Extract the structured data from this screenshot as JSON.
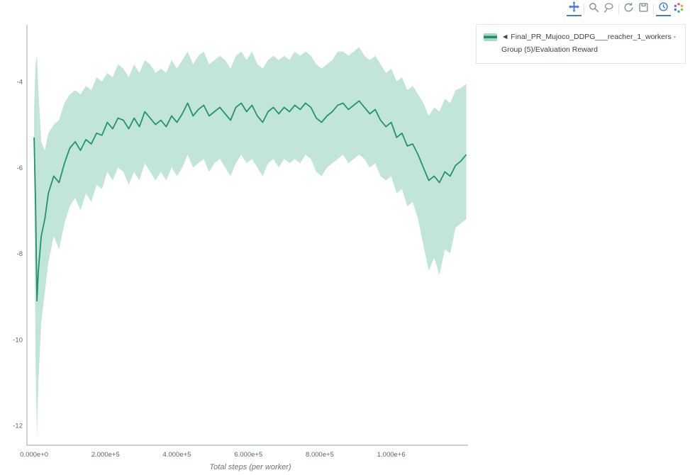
{
  "legend": {
    "label": "◄ Final_PR_Mujoco_DDPG___reacher_1_workers - Group (5)/Evaluation Reward"
  },
  "modebar": {
    "active_color": "#447adb",
    "icon_color": "#85929e",
    "icons": [
      {
        "id": "pan",
        "active": true,
        "group_end": true
      },
      {
        "id": "box-zoom",
        "active": false,
        "group_end": false
      },
      {
        "id": "lasso-select",
        "active": false,
        "group_end": true
      },
      {
        "id": "reset-axes",
        "active": false,
        "group_end": false
      },
      {
        "id": "snapshot",
        "active": false,
        "group_end": true
      },
      {
        "id": "hover-mode",
        "active": true,
        "group_end": false
      },
      {
        "id": "plotly-logo",
        "active": false,
        "group_end": false
      }
    ]
  },
  "chart_data": {
    "type": "line",
    "title": "",
    "xlabel": "Total steps (per worker)",
    "ylabel": "",
    "grid": false,
    "legend_position": "top-right",
    "xlim": [
      -20000,
      1215000
    ],
    "ylim": [
      -12.46,
      -2.68
    ],
    "x_ticks": {
      "values": [
        0,
        200000,
        400000,
        600000,
        800000,
        1000000
      ],
      "labels": [
        "0.000e+0",
        "2.000e+5",
        "4.000e+5",
        "6.000e+5",
        "8.000e+5",
        "1.000e+6"
      ]
    },
    "y_ticks": {
      "values": [
        -4,
        -6,
        -8,
        -10,
        -12
      ],
      "labels": [
        "-4",
        "-6",
        "-8",
        "-10",
        "-12"
      ]
    },
    "series": [
      {
        "name": "Final_PR_Mujoco_DDPG___reacher_1_workers - Group (5)/Evaluation Reward (mean)",
        "color": "#21936f",
        "x": [
          0,
          4000,
          8000,
          12000,
          20000,
          30000,
          40000,
          55000,
          70000,
          85000,
          100000,
          115000,
          130000,
          145000,
          160000,
          175000,
          190000,
          205000,
          220000,
          235000,
          250000,
          265000,
          280000,
          295000,
          310000,
          325000,
          340000,
          355000,
          370000,
          385000,
          400000,
          415000,
          430000,
          445000,
          460000,
          475000,
          490000,
          505000,
          520000,
          535000,
          550000,
          565000,
          580000,
          595000,
          610000,
          625000,
          640000,
          655000,
          670000,
          685000,
          700000,
          715000,
          730000,
          745000,
          760000,
          775000,
          790000,
          805000,
          820000,
          835000,
          850000,
          865000,
          880000,
          895000,
          910000,
          925000,
          940000,
          955000,
          970000,
          985000,
          1000000,
          1015000,
          1030000,
          1045000,
          1060000,
          1075000,
          1090000,
          1105000,
          1120000,
          1135000,
          1150000,
          1165000,
          1180000,
          1195000,
          1210000
        ],
        "values": [
          -5.3,
          -6.8,
          -9.1,
          -8.4,
          -7.6,
          -7.2,
          -6.6,
          -6.2,
          -6.35,
          -5.9,
          -5.55,
          -5.4,
          -5.6,
          -5.35,
          -5.45,
          -5.2,
          -5.25,
          -4.95,
          -5.1,
          -4.85,
          -4.9,
          -5.1,
          -4.85,
          -5.05,
          -4.7,
          -4.85,
          -5.0,
          -4.9,
          -5.05,
          -4.8,
          -4.95,
          -4.75,
          -4.5,
          -4.8,
          -4.65,
          -4.55,
          -4.8,
          -4.7,
          -4.6,
          -4.75,
          -4.9,
          -4.6,
          -4.5,
          -4.7,
          -4.55,
          -4.8,
          -4.95,
          -4.7,
          -4.6,
          -4.75,
          -4.6,
          -4.7,
          -4.55,
          -4.65,
          -4.5,
          -4.6,
          -4.85,
          -4.95,
          -4.8,
          -4.7,
          -4.55,
          -4.5,
          -4.65,
          -4.55,
          -4.45,
          -4.6,
          -4.75,
          -4.65,
          -4.9,
          -5.05,
          -4.95,
          -5.3,
          -5.2,
          -5.5,
          -5.45,
          -5.7,
          -6.0,
          -6.3,
          -6.2,
          -6.35,
          -6.1,
          -6.2,
          -5.95,
          -5.85,
          -5.7
        ]
      }
    ],
    "band": {
      "fill": "#8fd0b9",
      "opacity": 0.55,
      "upper": [
        -4.6,
        -3.6,
        -3.4,
        -4.2,
        -5.4,
        -5.6,
        -5.2,
        -5.0,
        -4.9,
        -4.5,
        -4.3,
        -4.2,
        -4.3,
        -4.1,
        -4.2,
        -3.9,
        -4.0,
        -3.8,
        -3.9,
        -3.6,
        -3.7,
        -3.9,
        -3.6,
        -3.8,
        -3.5,
        -3.6,
        -3.8,
        -3.7,
        -3.8,
        -3.5,
        -3.7,
        -3.5,
        -3.3,
        -3.6,
        -3.4,
        -3.3,
        -3.6,
        -3.5,
        -3.4,
        -3.5,
        -3.7,
        -3.4,
        -3.3,
        -3.5,
        -3.3,
        -3.6,
        -3.7,
        -3.5,
        -3.4,
        -3.5,
        -3.4,
        -3.5,
        -3.3,
        -3.4,
        -3.3,
        -3.4,
        -3.6,
        -3.7,
        -3.6,
        -3.5,
        -3.3,
        -3.3,
        -3.4,
        -3.3,
        -3.2,
        -3.4,
        -3.5,
        -3.4,
        -3.6,
        -3.8,
        -3.7,
        -4.0,
        -3.9,
        -4.2,
        -4.1,
        -4.3,
        -4.5,
        -4.8,
        -4.6,
        -4.7,
        -4.4,
        -4.5,
        -4.2,
        -4.15,
        -4.05
      ],
      "lower": [
        -6.0,
        -10.5,
        -12.3,
        -11.0,
        -9.6,
        -8.9,
        -8.2,
        -7.6,
        -7.9,
        -7.3,
        -6.9,
        -6.7,
        -7.0,
        -6.6,
        -6.8,
        -6.4,
        -6.5,
        -6.1,
        -6.3,
        -6.0,
        -6.1,
        -6.4,
        -6.1,
        -6.3,
        -5.9,
        -6.1,
        -6.3,
        -6.1,
        -6.3,
        -6.0,
        -6.2,
        -6.0,
        -5.7,
        -6.0,
        -5.9,
        -5.8,
        -6.1,
        -5.9,
        -5.8,
        -6.0,
        -6.2,
        -5.9,
        -5.7,
        -5.9,
        -5.8,
        -6.0,
        -6.2,
        -5.9,
        -5.8,
        -6.0,
        -5.8,
        -5.9,
        -5.8,
        -5.9,
        -5.7,
        -5.8,
        -6.1,
        -6.2,
        -6.0,
        -5.9,
        -5.8,
        -5.7,
        -5.9,
        -5.8,
        -5.7,
        -5.8,
        -6.0,
        -5.9,
        -6.2,
        -6.3,
        -6.2,
        -6.6,
        -6.5,
        -6.9,
        -6.8,
        -7.2,
        -7.8,
        -8.4,
        -8.1,
        -8.5,
        -7.9,
        -8.0,
        -7.4,
        -7.3,
        -7.2
      ]
    }
  }
}
